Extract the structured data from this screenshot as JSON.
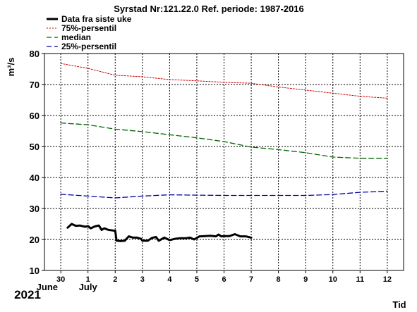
{
  "chart_data": {
    "type": "line",
    "title": "Syrstad Nr:121.22.0 Ref. periode: 1987-2016",
    "ylabel": "m³/s",
    "xlabel": "Tid",
    "ylim": [
      10,
      80
    ],
    "yticks": [
      10,
      20,
      30,
      40,
      50,
      60,
      70,
      80
    ],
    "grid": true,
    "legend_position": "top-left",
    "xrange_days": [
      -0.6,
      12.6
    ],
    "x_ticks": [
      {
        "label": "30",
        "x": 0
      },
      {
        "label": "1",
        "x": 1
      },
      {
        "label": "2",
        "x": 2
      },
      {
        "label": "3",
        "x": 3
      },
      {
        "label": "4",
        "x": 4
      },
      {
        "label": "5",
        "x": 5
      },
      {
        "label": "6",
        "x": 6
      },
      {
        "label": "7",
        "x": 7
      },
      {
        "label": "8",
        "x": 8
      },
      {
        "label": "9",
        "x": 9
      },
      {
        "label": "10",
        "x": 10
      },
      {
        "label": "11",
        "x": 11
      },
      {
        "label": "12",
        "x": 12
      }
    ],
    "month_labels": [
      {
        "label": "June",
        "x": -0.5
      },
      {
        "label": "July",
        "x": 1
      }
    ],
    "year_label": "2021",
    "series": [
      {
        "name": "75%-persentil",
        "color": "#cc0000",
        "dash": "2,2",
        "width": 1,
        "points": [
          [
            0,
            76.8
          ],
          [
            1,
            75.2
          ],
          [
            2,
            73.0
          ],
          [
            3,
            72.5
          ],
          [
            4,
            71.6
          ],
          [
            5,
            71.2
          ],
          [
            6,
            70.7
          ],
          [
            7,
            70.4
          ],
          [
            8,
            69.2
          ],
          [
            9,
            68.2
          ],
          [
            10,
            67.2
          ],
          [
            11,
            66.2
          ],
          [
            12,
            65.6
          ]
        ]
      },
      {
        "name": "median",
        "color": "#006600",
        "dash": "7,4",
        "width": 1.3,
        "points": [
          [
            0,
            57.6
          ],
          [
            1,
            57.0
          ],
          [
            2,
            55.6
          ],
          [
            3,
            54.8
          ],
          [
            4,
            53.8
          ],
          [
            5,
            52.8
          ],
          [
            6,
            51.6
          ],
          [
            7,
            49.8
          ],
          [
            8,
            49.0
          ],
          [
            9,
            48.0
          ],
          [
            10,
            46.6
          ],
          [
            11,
            46.2
          ],
          [
            12,
            46.2
          ]
        ]
      },
      {
        "name": "25%-persentil",
        "color": "#0000aa",
        "dash": "7,4",
        "width": 1.3,
        "points": [
          [
            0,
            34.6
          ],
          [
            1,
            34.0
          ],
          [
            2,
            33.4
          ],
          [
            3,
            34.0
          ],
          [
            4,
            34.4
          ],
          [
            5,
            34.3
          ],
          [
            6,
            34.2
          ],
          [
            7,
            34.2
          ],
          [
            8,
            34.2
          ],
          [
            9,
            34.2
          ],
          [
            10,
            34.5
          ],
          [
            11,
            35.2
          ],
          [
            12,
            35.6
          ]
        ]
      },
      {
        "name": "Data fra siste uke",
        "color": "#000000",
        "dash": "",
        "width": 3,
        "points": [
          [
            0.25,
            23.8
          ],
          [
            0.4,
            25.0
          ],
          [
            0.55,
            24.4
          ],
          [
            0.7,
            24.5
          ],
          [
            0.9,
            24.1
          ],
          [
            1.0,
            24.3
          ],
          [
            1.1,
            23.6
          ],
          [
            1.25,
            24.2
          ],
          [
            1.4,
            24.5
          ],
          [
            1.5,
            23.1
          ],
          [
            1.6,
            23.6
          ],
          [
            1.75,
            23.1
          ],
          [
            1.9,
            22.9
          ],
          [
            2.0,
            22.8
          ],
          [
            2.05,
            19.6
          ],
          [
            2.2,
            19.5
          ],
          [
            2.35,
            19.6
          ],
          [
            2.5,
            21.0
          ],
          [
            2.65,
            20.6
          ],
          [
            2.8,
            20.6
          ],
          [
            2.95,
            20.2
          ],
          [
            3.0,
            19.6
          ],
          [
            3.2,
            19.6
          ],
          [
            3.35,
            20.5
          ],
          [
            3.5,
            20.8
          ],
          [
            3.6,
            19.6
          ],
          [
            3.8,
            20.6
          ],
          [
            4.0,
            19.8
          ],
          [
            4.2,
            20.2
          ],
          [
            4.4,
            20.4
          ],
          [
            4.6,
            20.4
          ],
          [
            4.75,
            20.6
          ],
          [
            4.9,
            20.0
          ],
          [
            5.1,
            21.0
          ],
          [
            5.3,
            21.1
          ],
          [
            5.5,
            21.2
          ],
          [
            5.7,
            21.0
          ],
          [
            5.8,
            21.6
          ],
          [
            5.9,
            21.0
          ],
          [
            6.0,
            21.1
          ],
          [
            6.2,
            21.1
          ],
          [
            6.4,
            21.7
          ],
          [
            6.6,
            21.0
          ],
          [
            6.8,
            21.0
          ],
          [
            7.0,
            20.6
          ]
        ]
      }
    ]
  }
}
